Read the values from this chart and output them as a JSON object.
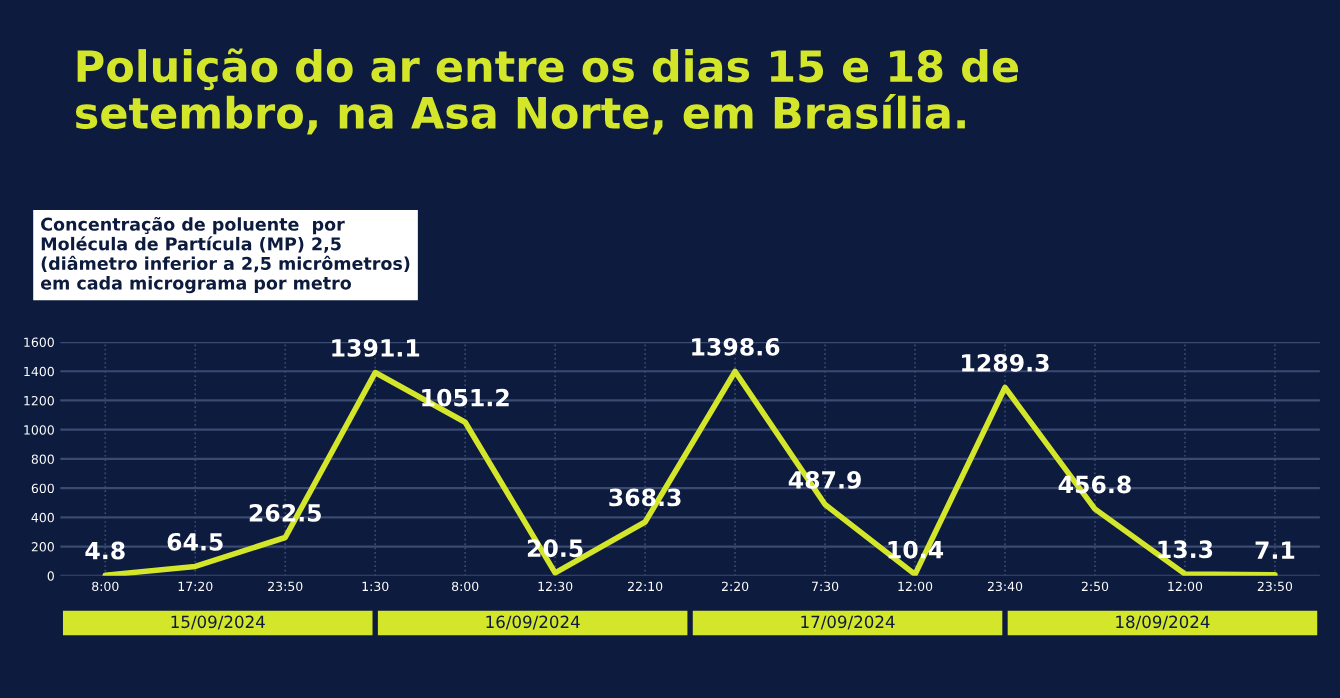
{
  "chart_data": {
    "type": "line",
    "title": "Poluição do ar entre os dias 15 e 18 de\nsetembro, na Asa Norte, em Brasília.",
    "ylabel": "Concentração de poluente  por\nMolécula de Partícula (MP) 2,5\n(diâmetro inferior a 2,5 micrômetros)\nem cada micrograma por metro",
    "categories": [
      "8:00",
      "17:20",
      "23:50",
      "1:30",
      "8:00",
      "12:30",
      "22:10",
      "2:20",
      "7:30",
      "12:00",
      "23:40",
      "2:50",
      "12:00",
      "23:50"
    ],
    "series": [
      {
        "color": "#d4e62a",
        "values": [
          4.8,
          64.5,
          262.5,
          1391.1,
          1051.2,
          20.5,
          368.3,
          1398.6,
          487.9,
          10.4,
          1289.3,
          456.8,
          13.3,
          7.1
        ]
      }
    ],
    "ylim": [
      0,
      1600
    ],
    "yticks": [
      0,
      200,
      400,
      600,
      800,
      1000,
      1200,
      1400,
      1600
    ],
    "grid": true,
    "data_labels": true,
    "legend": false,
    "annotations": [
      "15/09/2024",
      "16/09/2024",
      "17/09/2024",
      "18/09/2024"
    ]
  }
}
